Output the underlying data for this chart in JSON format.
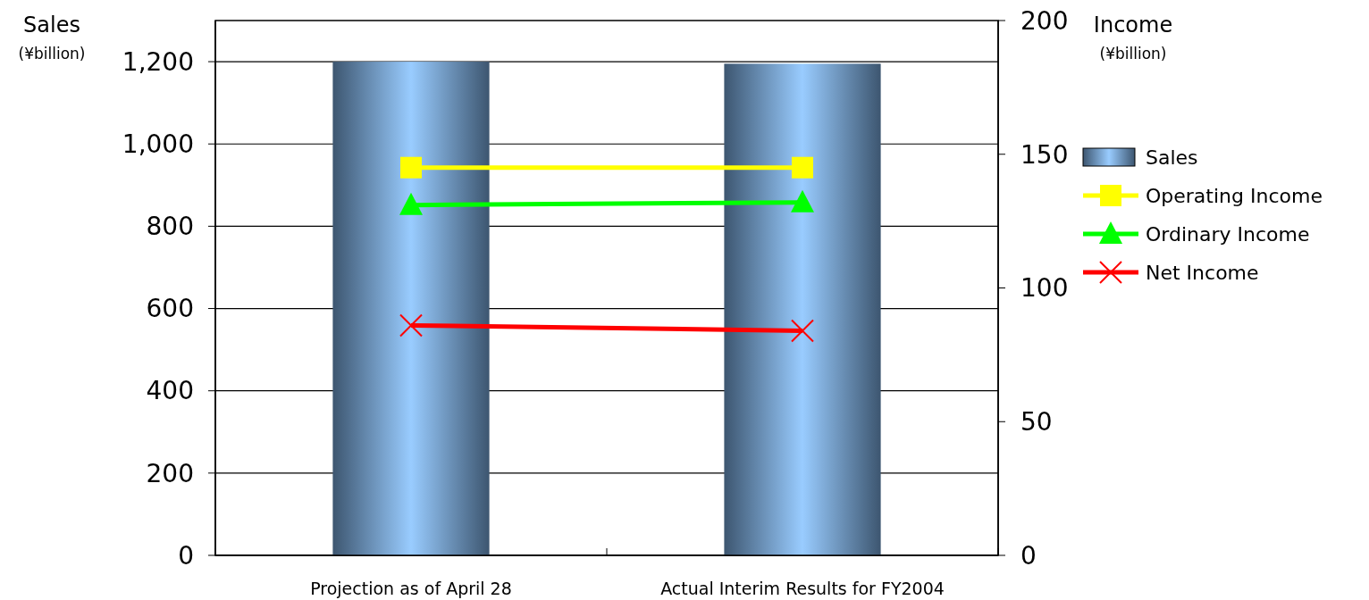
{
  "chart_data": {
    "type": "bar",
    "ylabel": "Sales\n(¥billion)",
    "y2label": "Income\n(¥billion)",
    "categories": [
      "Projection as of April 28",
      "Actual Interim Results for FY2004"
    ],
    "series": [
      {
        "name": "Sales",
        "color": "#99ccff",
        "values": [
          1200,
          1195
        ]
      },
      {
        "name": "Operating Income",
        "type": "line",
        "axis": "y2",
        "color": "#ffff00",
        "marker": "square",
        "values": [
          145,
          145
        ]
      },
      {
        "name": "Ordinary Income",
        "type": "line",
        "axis": "y2",
        "color": "#00ff00",
        "marker": "triangle",
        "values": [
          131,
          132
        ]
      },
      {
        "name": "Net Income",
        "type": "line",
        "axis": "y2",
        "color": "#ff0000",
        "marker": "cross",
        "values": [
          86,
          84
        ]
      }
    ],
    "ylim": [
      0,
      1300
    ],
    "yticks": [
      0,
      {
        "value": 200,
        "label": "200"
      },
      {
        "value": 400,
        "label": "400"
      },
      {
        "value": 600,
        "label": "600"
      },
      {
        "value": 800,
        "label": "800"
      },
      {
        "value": 1000,
        "label": "1,000"
      },
      {
        "value": 1200,
        "label": "1,200"
      }
    ],
    "y2lim": [
      0,
      200
    ],
    "y2ticks": [
      0,
      50,
      100,
      150,
      200
    ],
    "grid": "y",
    "legend": "right"
  }
}
